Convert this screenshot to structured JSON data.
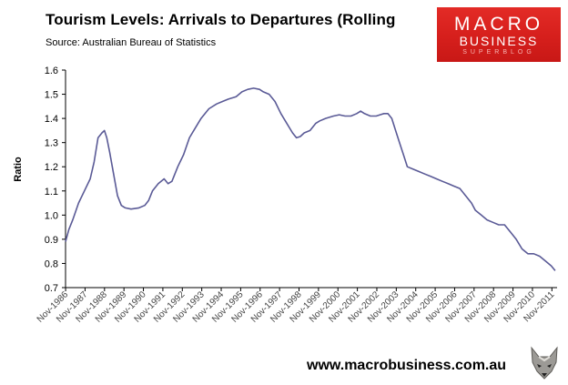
{
  "header": {
    "title": "Tourism Levels: Arrivals to Departures (Rolling",
    "source": "Source: Australian Bureau of Statistics"
  },
  "logo": {
    "line1": "MACRO",
    "line2": "BUSINESS",
    "line3": "SUPERBLOG"
  },
  "footer": {
    "website": "www.macrobusiness.com.au"
  },
  "colors": {
    "line": "#5a5a96",
    "logo_red": "#d8201d",
    "axis": "#000000"
  },
  "icons": {
    "mascot": "fox-icon"
  },
  "chart_data": {
    "type": "line",
    "title": "Tourism Levels: Arrivals to Departures (Rolling",
    "xlabel": "",
    "ylabel": "Ratio",
    "ylim": [
      0.7,
      1.6
    ],
    "yticks": [
      "0.7",
      "0.8",
      "0.9",
      "1.0",
      "1.1",
      "1.2",
      "1.3",
      "1.4",
      "1.5",
      "1.6"
    ],
    "xlim": [
      1986.83,
      2012.1
    ],
    "categories": [
      "Nov-1986",
      "Nov-1987",
      "Nov-1988",
      "Nov-1989",
      "Nov-1990",
      "Nov-1991",
      "Nov-1992",
      "Nov-1993",
      "Nov-1994",
      "Nov-1995",
      "Nov-1996",
      "Nov-1997",
      "Nov-1998",
      "Nov-1999",
      "Nov-2000",
      "Nov-2001",
      "Nov-2002",
      "Nov-2003",
      "Nov-2004",
      "Nov-2005",
      "Nov-2006",
      "Nov-2007",
      "Nov-2008",
      "Nov-2009",
      "Nov-2010",
      "Nov-2011"
    ],
    "grid": false,
    "legend": "none",
    "series": [
      {
        "x": [
          1986.83,
          1987.0,
          1987.2,
          1987.5,
          1987.8,
          1988.1,
          1988.3,
          1988.5,
          1988.7,
          1988.83,
          1988.95,
          1989.1,
          1989.3,
          1989.5,
          1989.7,
          1989.9,
          1990.2,
          1990.6,
          1990.9,
          1991.1,
          1991.3,
          1991.6,
          1991.9,
          1992.1,
          1992.3,
          1992.6,
          1992.9,
          1993.2,
          1993.5,
          1993.8,
          1994.2,
          1994.6,
          1994.9,
          1995.2,
          1995.6,
          1995.9,
          1996.2,
          1996.5,
          1996.8,
          1997.0,
          1997.3,
          1997.6,
          1997.9,
          1998.2,
          1998.5,
          1998.7,
          1998.9,
          1999.1,
          1999.4,
          1999.7,
          1999.9,
          2000.2,
          2000.6,
          2000.9,
          2001.2,
          2001.5,
          2001.8,
          2002.0,
          2002.2,
          2002.5,
          2002.8,
          2003.0,
          2003.2,
          2003.4,
          2003.6,
          2003.8,
          2004.0,
          2004.2,
          2004.4,
          2004.7,
          2005.0,
          2005.3,
          2005.6,
          2005.9,
          2006.2,
          2006.5,
          2006.8,
          2007.1,
          2007.4,
          2007.7,
          2007.9,
          2008.2,
          2008.5,
          2008.8,
          2009.1,
          2009.4,
          2009.7,
          2010.0,
          2010.3,
          2010.6,
          2010.9,
          2011.2,
          2011.5,
          2011.8,
          2012.0
        ],
        "y": [
          0.89,
          0.94,
          0.98,
          1.05,
          1.1,
          1.15,
          1.22,
          1.32,
          1.34,
          1.35,
          1.32,
          1.26,
          1.17,
          1.08,
          1.04,
          1.03,
          1.025,
          1.03,
          1.04,
          1.06,
          1.1,
          1.13,
          1.15,
          1.13,
          1.14,
          1.2,
          1.25,
          1.32,
          1.36,
          1.4,
          1.44,
          1.46,
          1.47,
          1.48,
          1.49,
          1.51,
          1.52,
          1.525,
          1.52,
          1.51,
          1.5,
          1.47,
          1.42,
          1.38,
          1.34,
          1.32,
          1.325,
          1.34,
          1.35,
          1.38,
          1.39,
          1.4,
          1.41,
          1.415,
          1.41,
          1.41,
          1.42,
          1.43,
          1.42,
          1.41,
          1.41,
          1.415,
          1.42,
          1.42,
          1.4,
          1.35,
          1.3,
          1.25,
          1.2,
          1.19,
          1.18,
          1.17,
          1.16,
          1.15,
          1.14,
          1.13,
          1.12,
          1.11,
          1.08,
          1.05,
          1.02,
          1.0,
          0.98,
          0.97,
          0.96,
          0.96,
          0.93,
          0.9,
          0.86,
          0.84,
          0.84,
          0.83,
          0.81,
          0.79,
          0.77
        ]
      }
    ]
  }
}
